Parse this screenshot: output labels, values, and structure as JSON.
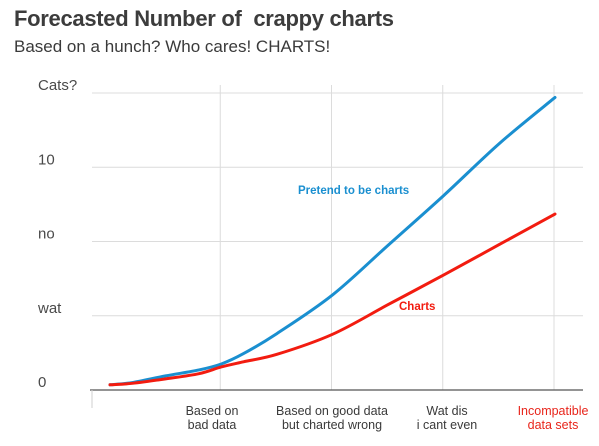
{
  "chart_data": {
    "type": "line",
    "title_part1": "Forecasted Number of",
    "title_part2": "crappy charts",
    "subtitle": "Based on a hunch? Who cares! CHARTS!",
    "y_ticks": [
      "0",
      "wat",
      "no",
      "10",
      "Cats?"
    ],
    "x_ticks": [
      {
        "lines": [
          "Based on",
          "bad data"
        ],
        "color": "#333333"
      },
      {
        "lines": [
          "Based on good data",
          "but charted wrong"
        ],
        "color": "#333333"
      },
      {
        "lines": [
          "Wat dis",
          "i cant even"
        ],
        "color": "#333333"
      },
      {
        "lines": [
          "Incompatible",
          "data sets"
        ],
        "color": "#e8251b"
      }
    ],
    "ylim": [
      0,
      4
    ],
    "xlim": [
      0,
      4
    ],
    "grid": true,
    "series": [
      {
        "name": "Pretend to be charts",
        "color": "#1a8fd0",
        "x": [
          0,
          0.2,
          0.5,
          0.8,
          1.0,
          1.2,
          1.5,
          2.0,
          2.5,
          3.0,
          3.5,
          4.0
        ],
        "y": [
          0.07,
          0.1,
          0.19,
          0.27,
          0.35,
          0.49,
          0.76,
          1.28,
          1.95,
          2.62,
          3.32,
          3.94
        ]
      },
      {
        "name": "Charts",
        "color": "#f21c10",
        "x": [
          0,
          0.2,
          0.5,
          0.8,
          1.0,
          1.2,
          1.5,
          2.0,
          2.5,
          3.0,
          3.5,
          4.0
        ],
        "y": [
          0.07,
          0.09,
          0.15,
          0.22,
          0.31,
          0.38,
          0.48,
          0.75,
          1.15,
          1.55,
          1.96,
          2.37
        ]
      }
    ]
  }
}
